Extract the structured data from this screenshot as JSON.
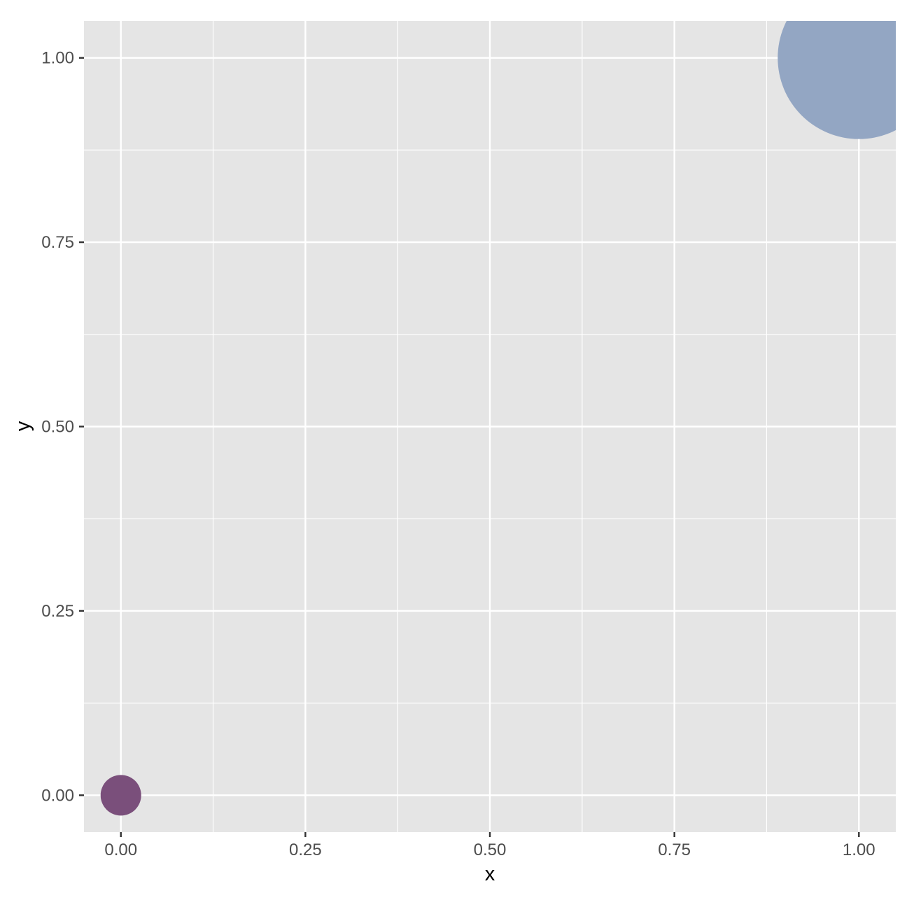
{
  "chart_data": {
    "type": "scatter",
    "title": "",
    "xlabel": "x",
    "ylabel": "y",
    "xlim": [
      -0.05,
      1.05
    ],
    "ylim": [
      -0.05,
      1.05
    ],
    "x_ticks": [
      0,
      0.25,
      0.5,
      0.75,
      1
    ],
    "x_tick_labels": [
      "0.00",
      "0.25",
      "0.50",
      "0.75",
      "1.00"
    ],
    "y_ticks": [
      0,
      0.25,
      0.5,
      0.75,
      1
    ],
    "y_tick_labels": [
      "0.00",
      "0.25",
      "0.50",
      "0.75",
      "1.00"
    ],
    "minor_ticks": [
      0.125,
      0.375,
      0.625,
      0.875
    ],
    "grid": true,
    "legend": "none",
    "points": [
      {
        "x": 0,
        "y": 0,
        "size": 1,
        "color": "#7a4f7b"
      },
      {
        "x": 1,
        "y": 1,
        "size": 4,
        "color": "#93a6c3"
      }
    ],
    "colors": {
      "panel_background": "#e5e5e5",
      "grid_line": "#ffffff",
      "tick_mark": "#333333"
    }
  }
}
